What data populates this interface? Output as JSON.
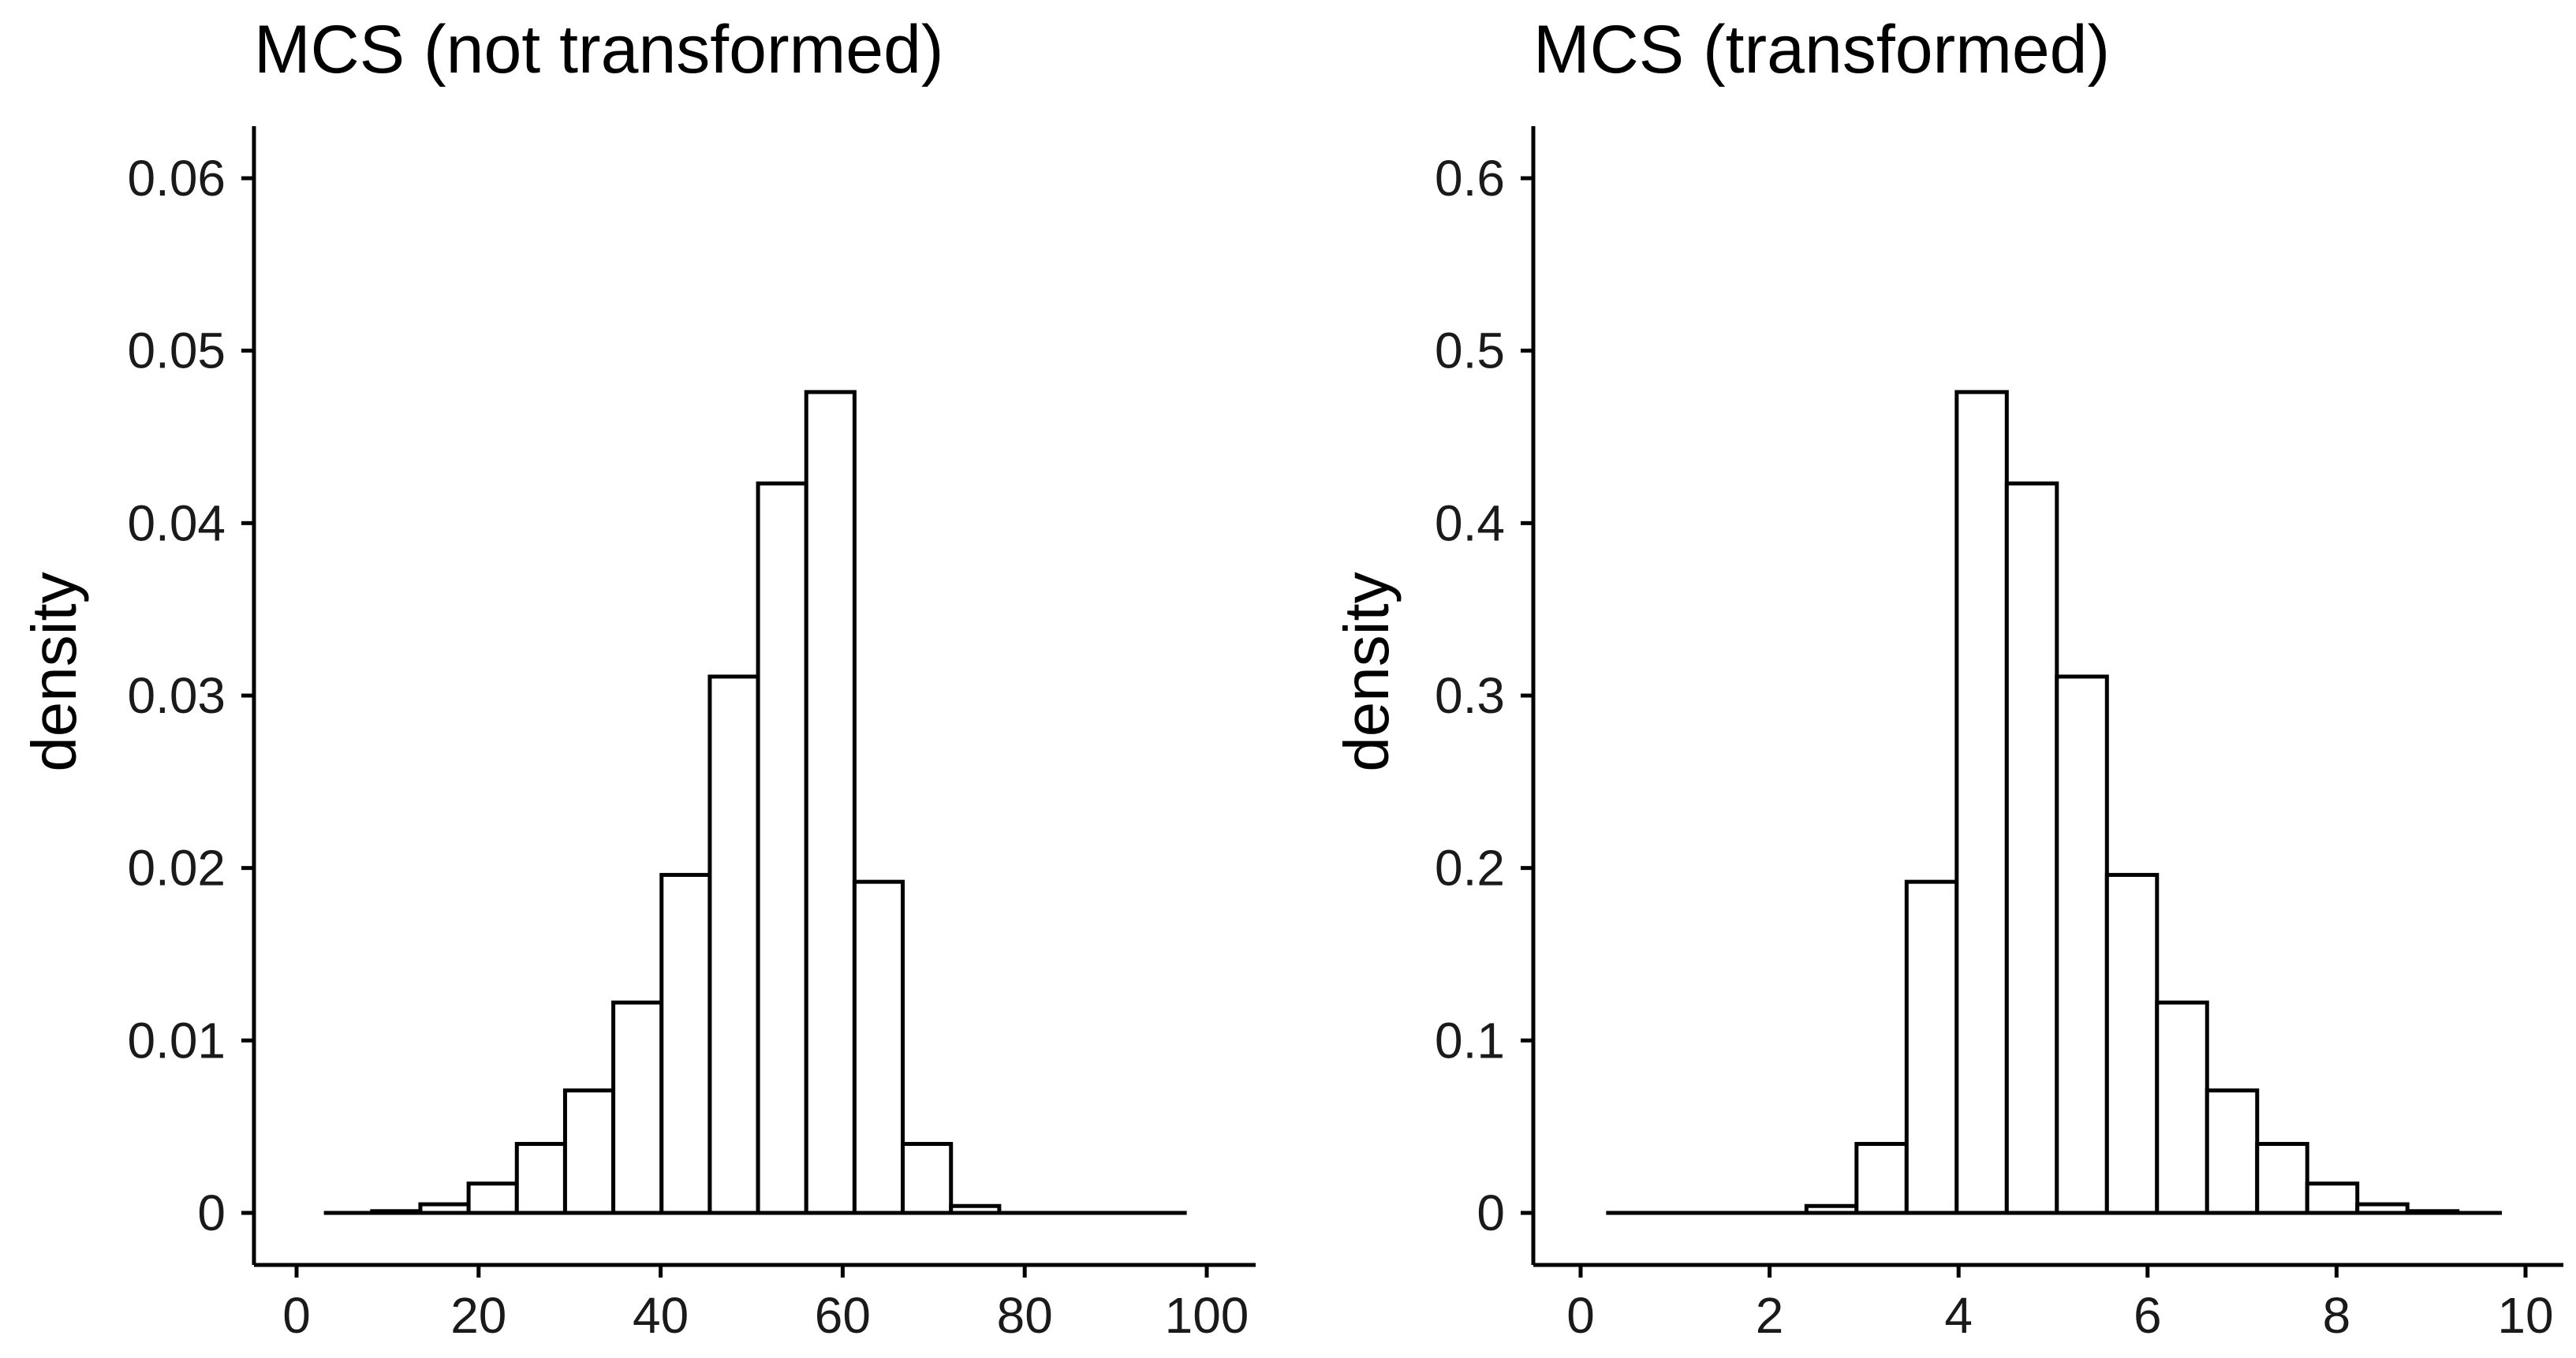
{
  "chart_data": [
    {
      "type": "bar",
      "title": "MCS (not transformed)",
      "xlabel": "",
      "ylabel": "density",
      "xlim": [
        0,
        100
      ],
      "ylim": [
        0,
        0.06
      ],
      "xticks": [
        "0",
        "20",
        "40",
        "60",
        "80",
        "100"
      ],
      "yticks": [
        "0",
        "0.01",
        "0.02",
        "0.03",
        "0.04",
        "0.05",
        "0.06"
      ],
      "bin_width": 5.3,
      "bins": [
        {
          "x0": 3.0,
          "x1": 8.3,
          "y": 0.0
        },
        {
          "x0": 8.3,
          "x1": 13.6,
          "y": 0.0001
        },
        {
          "x0": 13.6,
          "x1": 18.9,
          "y": 0.0005
        },
        {
          "x0": 18.9,
          "x1": 24.2,
          "y": 0.0017
        },
        {
          "x0": 24.2,
          "x1": 29.5,
          "y": 0.004
        },
        {
          "x0": 29.5,
          "x1": 34.8,
          "y": 0.0071
        },
        {
          "x0": 34.8,
          "x1": 40.1,
          "y": 0.0122
        },
        {
          "x0": 40.1,
          "x1": 45.4,
          "y": 0.0196
        },
        {
          "x0": 45.4,
          "x1": 50.7,
          "y": 0.0311
        },
        {
          "x0": 50.7,
          "x1": 56.0,
          "y": 0.0423
        },
        {
          "x0": 56.0,
          "x1": 61.3,
          "y": 0.0476
        },
        {
          "x0": 61.3,
          "x1": 66.6,
          "y": 0.0192
        },
        {
          "x0": 66.6,
          "x1": 71.9,
          "y": 0.004
        },
        {
          "x0": 71.9,
          "x1": 77.2,
          "y": 0.0004
        },
        {
          "x0": 77.2,
          "x1": 82.5,
          "y": 0.0
        },
        {
          "x0": 82.5,
          "x1": 87.8,
          "y": 0.0
        },
        {
          "x0": 87.8,
          "x1": 93.1,
          "y": 0.0
        },
        {
          "x0": 93.1,
          "x1": 97.8,
          "y": 0.0
        }
      ]
    },
    {
      "type": "bar",
      "title": "MCS (transformed)",
      "xlabel": "",
      "ylabel": "density",
      "xlim": [
        0,
        10
      ],
      "ylim": [
        0,
        0.6
      ],
      "xticks": [
        "0",
        "2",
        "4",
        "6",
        "8",
        "10"
      ],
      "yticks": [
        "0",
        "0.1",
        "0.2",
        "0.3",
        "0.4",
        "0.5",
        "0.6"
      ],
      "bin_width": 0.53,
      "bins": [
        {
          "x0": 0.27,
          "x1": 0.8,
          "y": 0.0
        },
        {
          "x0": 0.8,
          "x1": 1.33,
          "y": 0.0
        },
        {
          "x0": 1.33,
          "x1": 1.86,
          "y": 0.0
        },
        {
          "x0": 1.86,
          "x1": 2.39,
          "y": 0.0
        },
        {
          "x0": 2.39,
          "x1": 2.92,
          "y": 0.004
        },
        {
          "x0": 2.92,
          "x1": 3.45,
          "y": 0.04
        },
        {
          "x0": 3.45,
          "x1": 3.98,
          "y": 0.192
        },
        {
          "x0": 3.98,
          "x1": 4.51,
          "y": 0.476
        },
        {
          "x0": 4.51,
          "x1": 5.04,
          "y": 0.423
        },
        {
          "x0": 5.04,
          "x1": 5.57,
          "y": 0.311
        },
        {
          "x0": 5.57,
          "x1": 6.1,
          "y": 0.196
        },
        {
          "x0": 6.1,
          "x1": 6.63,
          "y": 0.122
        },
        {
          "x0": 6.63,
          "x1": 7.16,
          "y": 0.071
        },
        {
          "x0": 7.16,
          "x1": 7.69,
          "y": 0.04
        },
        {
          "x0": 7.69,
          "x1": 8.22,
          "y": 0.017
        },
        {
          "x0": 8.22,
          "x1": 8.75,
          "y": 0.005
        },
        {
          "x0": 8.75,
          "x1": 9.28,
          "y": 0.001
        },
        {
          "x0": 9.28,
          "x1": 9.75,
          "y": 0.0
        }
      ]
    }
  ]
}
